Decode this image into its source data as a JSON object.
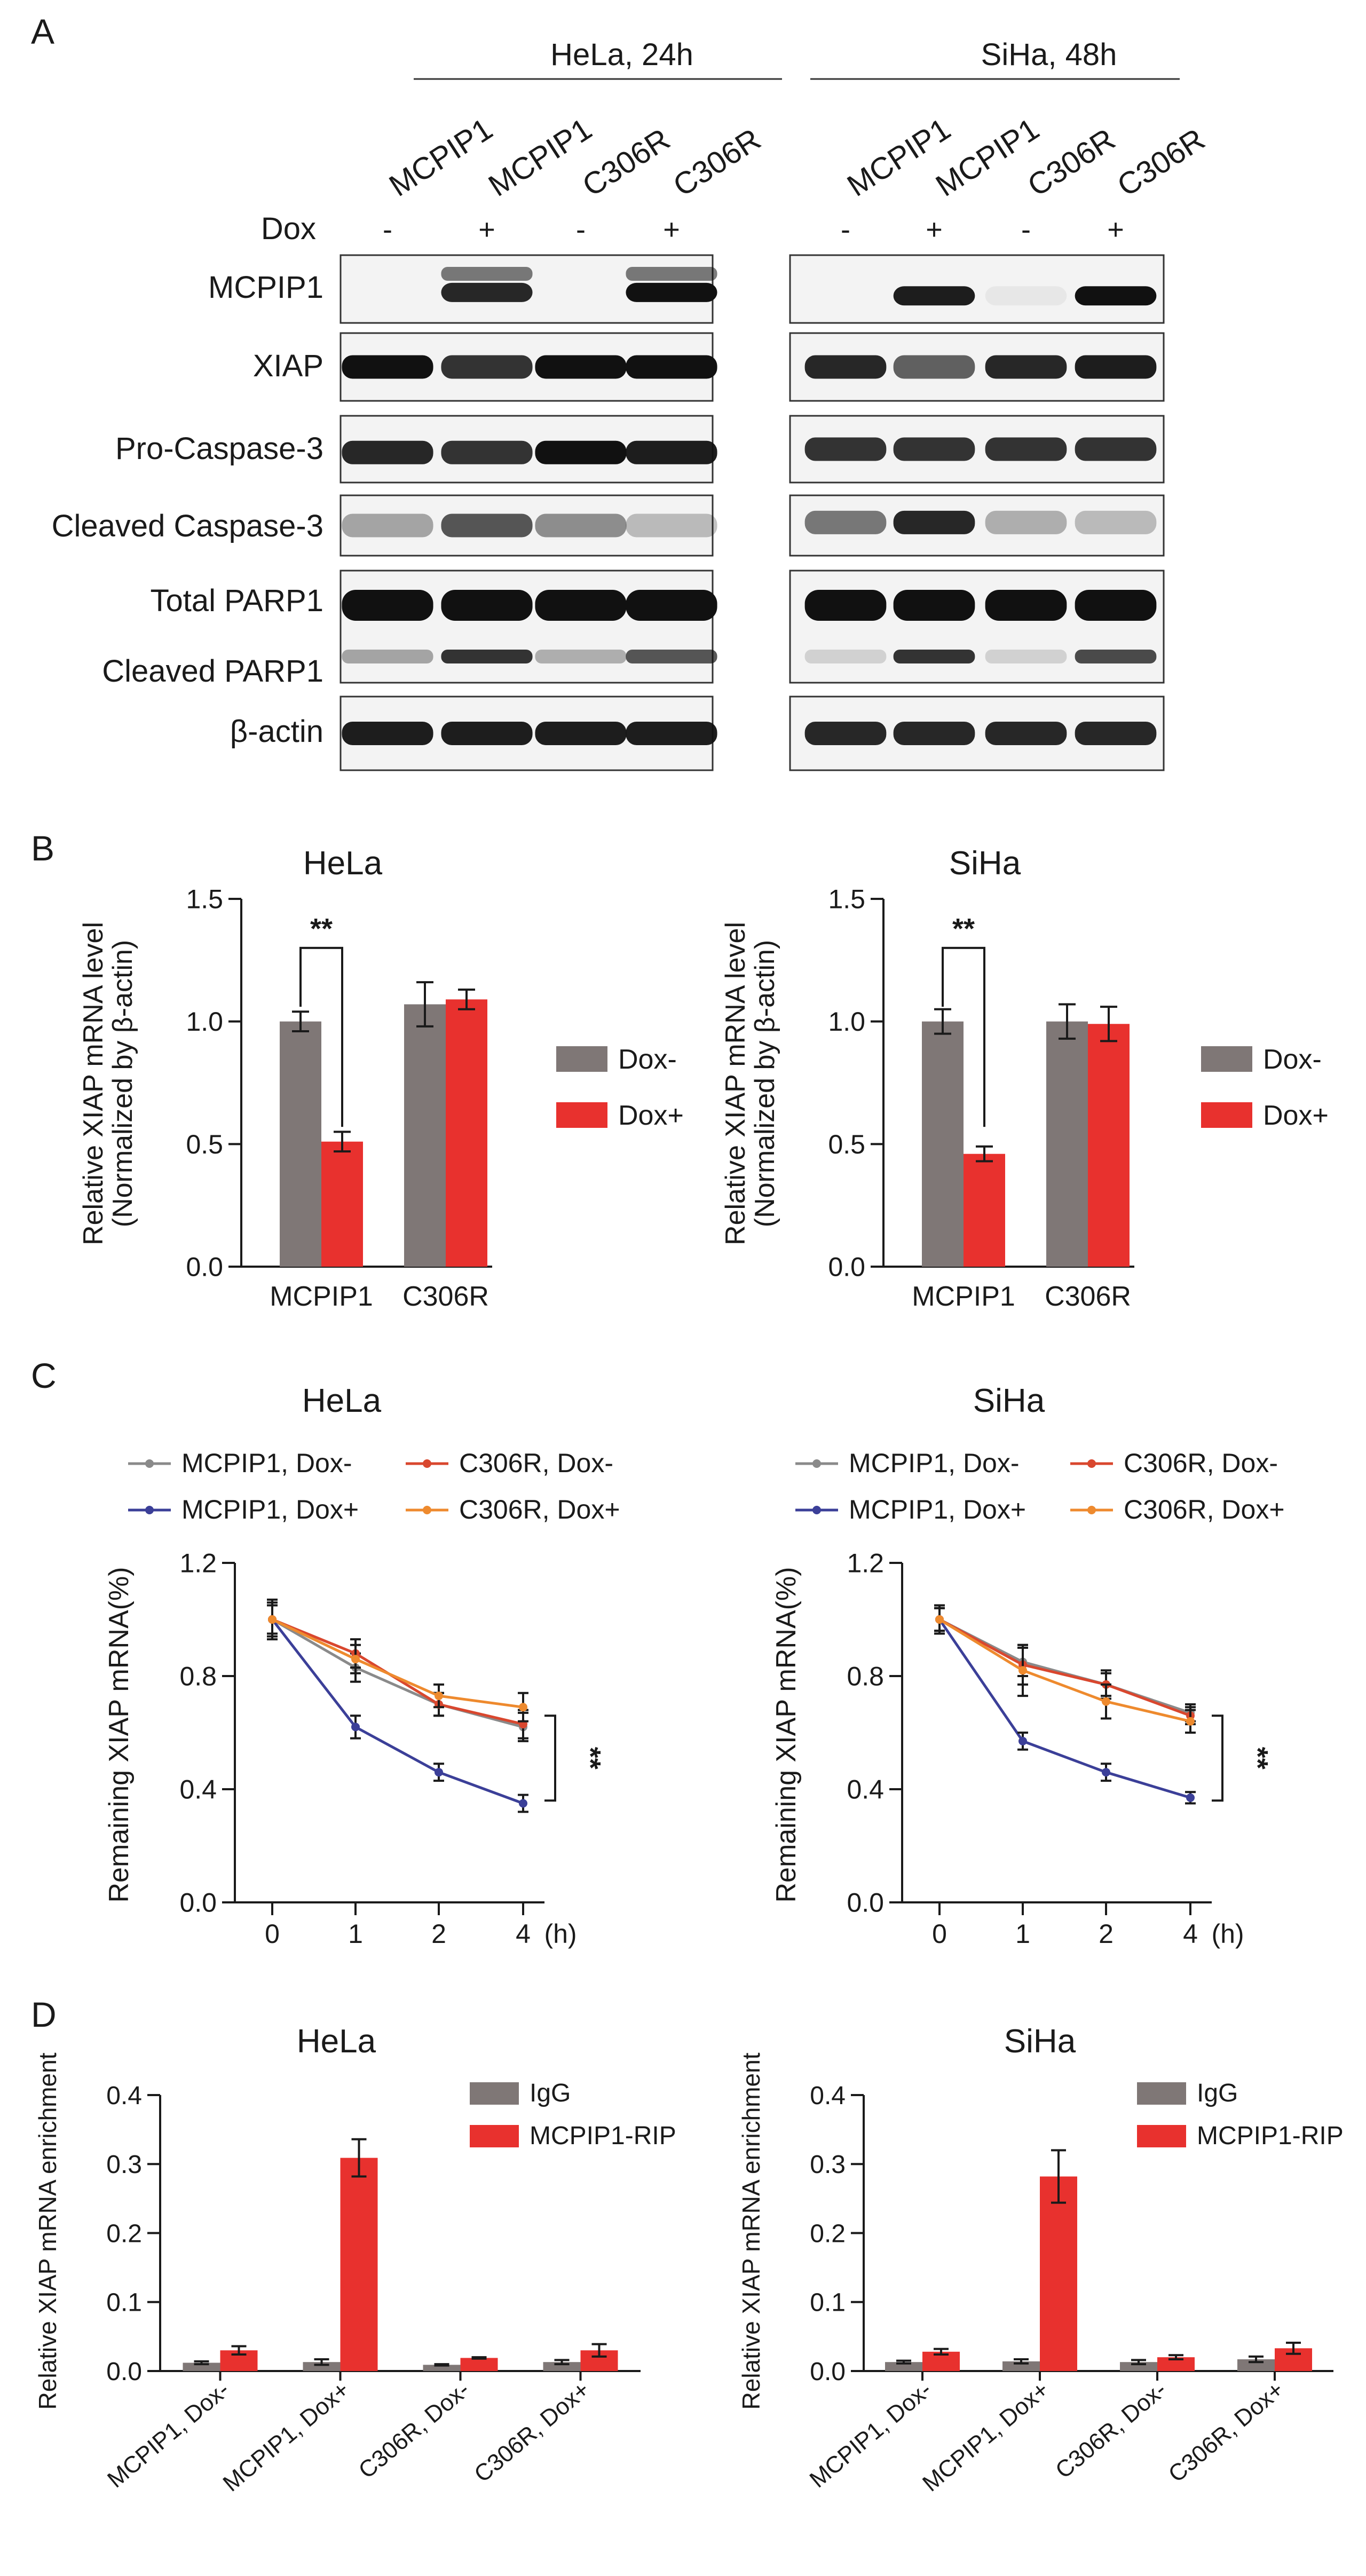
{
  "colors": {
    "grey": "#7f7776",
    "red": "#e8312e",
    "blue": "#3b3f98",
    "orange": "#ee8a2e",
    "darkred": "#d9472e",
    "linegrey": "#8a8a8a"
  },
  "panelA": {
    "letter": "A",
    "groups": [
      "HeLa, 24h",
      "SiHa, 48h"
    ],
    "lanes": [
      "MCPIP1",
      "MCPIP1",
      "C306R",
      "C306R"
    ],
    "dox_label": "Dox",
    "dox": [
      "-",
      "+",
      "-",
      "+"
    ],
    "rows": [
      "MCPIP1",
      "XIAP",
      "Pro-Caspase-3",
      "Cleaved Caspase-3",
      "Total PARP1",
      "Cleaved PARP1",
      "β-actin"
    ]
  },
  "panelB": {
    "letter": "B"
  },
  "panelC": {
    "letter": "C"
  },
  "panelD": {
    "letter": "D"
  },
  "chart_data": [
    {
      "id": "B-HeLa",
      "type": "bar",
      "title": "HeLa",
      "ylabel": "Relative XIAP mRNA level",
      "ylabel2": "(Normalized by β-actin)",
      "categories": [
        "MCPIP1",
        "C306R"
      ],
      "ylim": [
        0,
        1.5
      ],
      "yticks": [
        "0.0",
        "0.5",
        "1.0",
        "1.5"
      ],
      "series": [
        {
          "name": "Dox-",
          "values": [
            1.0,
            1.07
          ],
          "errors": [
            0.04,
            0.09
          ]
        },
        {
          "name": "Dox+",
          "values": [
            0.51,
            1.09
          ],
          "errors": [
            0.04,
            0.04
          ]
        }
      ],
      "sig": "**"
    },
    {
      "id": "B-SiHa",
      "type": "bar",
      "title": "SiHa",
      "ylabel": "Relative XIAP mRNA level",
      "ylabel2": "(Normalized by β-actin)",
      "categories": [
        "MCPIP1",
        "C306R"
      ],
      "ylim": [
        0,
        1.5
      ],
      "yticks": [
        "0.0",
        "0.5",
        "1.0",
        "1.5"
      ],
      "series": [
        {
          "name": "Dox-",
          "values": [
            1.0,
            1.0
          ],
          "errors": [
            0.05,
            0.07
          ]
        },
        {
          "name": "Dox+",
          "values": [
            0.46,
            0.99
          ],
          "errors": [
            0.03,
            0.07
          ]
        }
      ],
      "sig": "**"
    },
    {
      "id": "C-HeLa",
      "type": "line",
      "title": "HeLa",
      "ylabel": "Remaining XIAP mRNA(%)",
      "x": [
        0,
        1,
        2,
        4
      ],
      "xticks": [
        "0",
        "1",
        "2",
        "4"
      ],
      "xunit": "(h)",
      "ylim": [
        0,
        1.2
      ],
      "yticks": [
        "0.0",
        "0.4",
        "0.8",
        "1.2"
      ],
      "series": [
        {
          "name": "MCPIP1, Dox-",
          "values": [
            1.0,
            0.83,
            0.7,
            0.62
          ],
          "errors": [
            0.05,
            0.05,
            0.04,
            0.05
          ]
        },
        {
          "name": "MCPIP1, Dox+",
          "values": [
            1.0,
            0.62,
            0.46,
            0.35
          ],
          "errors": [
            0.05,
            0.04,
            0.03,
            0.03
          ]
        },
        {
          "name": "C306R, Dox-",
          "values": [
            1.0,
            0.88,
            0.7,
            0.63
          ],
          "errors": [
            0.06,
            0.05,
            0.04,
            0.05
          ]
        },
        {
          "name": "C306R, Dox+",
          "values": [
            1.0,
            0.86,
            0.73,
            0.69
          ],
          "errors": [
            0.07,
            0.05,
            0.04,
            0.05
          ]
        }
      ],
      "sig": "**"
    },
    {
      "id": "C-SiHa",
      "type": "line",
      "title": "SiHa",
      "ylabel": "Remaining XIAP mRNA(%)",
      "x": [
        0,
        1,
        2,
        4
      ],
      "xticks": [
        "0",
        "1",
        "2",
        "4"
      ],
      "xunit": "(h)",
      "ylim": [
        0,
        1.2
      ],
      "yticks": [
        "0.0",
        "0.4",
        "0.8",
        "1.2"
      ],
      "series": [
        {
          "name": "MCPIP1, Dox-",
          "values": [
            1.0,
            0.85,
            0.77,
            0.67
          ],
          "errors": [
            0.04,
            0.05,
            0.04,
            0.03
          ]
        },
        {
          "name": "MCPIP1, Dox+",
          "values": [
            1.0,
            0.57,
            0.46,
            0.37
          ],
          "errors": [
            0.04,
            0.03,
            0.03,
            0.02
          ]
        },
        {
          "name": "C306R, Dox-",
          "values": [
            1.0,
            0.84,
            0.77,
            0.66
          ],
          "errors": [
            0.04,
            0.07,
            0.05,
            0.03
          ]
        },
        {
          "name": "C306R, Dox+",
          "values": [
            1.0,
            0.82,
            0.71,
            0.64
          ],
          "errors": [
            0.05,
            0.09,
            0.06,
            0.04
          ]
        }
      ],
      "sig": "**"
    },
    {
      "id": "D-HeLa",
      "type": "bar",
      "title": "HeLa",
      "ylabel": "Relative XIAP mRNA enrichment",
      "categories": [
        "MCPIP1, Dox-",
        "MCPIP1, Dox+",
        "C306R, Dox-",
        "C306R, Dox+"
      ],
      "ylim": [
        0,
        0.4
      ],
      "yticks": [
        "0.0",
        "0.1",
        "0.2",
        "0.3",
        "0.4"
      ],
      "series": [
        {
          "name": "IgG",
          "values": [
            0.012,
            0.013,
            0.009,
            0.013
          ],
          "errors": [
            0.002,
            0.004,
            0.001,
            0.003
          ]
        },
        {
          "name": "MCPIP1-RIP",
          "values": [
            0.03,
            0.309,
            0.019,
            0.03
          ],
          "errors": [
            0.006,
            0.027,
            0.001,
            0.009
          ]
        }
      ]
    },
    {
      "id": "D-SiHa",
      "type": "bar",
      "title": "SiHa",
      "ylabel": "Relative XIAP mRNA enrichment",
      "categories": [
        "MCPIP1, Dox-",
        "MCPIP1, Dox+",
        "C306R, Dox-",
        "C306R, Dox+"
      ],
      "ylim": [
        0,
        0.4
      ],
      "yticks": [
        "0.0",
        "0.1",
        "0.2",
        "0.3",
        "0.4"
      ],
      "series": [
        {
          "name": "IgG",
          "values": [
            0.013,
            0.014,
            0.013,
            0.017
          ],
          "errors": [
            0.002,
            0.003,
            0.003,
            0.004
          ]
        },
        {
          "name": "MCPIP1-RIP",
          "values": [
            0.028,
            0.282,
            0.02,
            0.033
          ],
          "errors": [
            0.004,
            0.038,
            0.003,
            0.008
          ]
        }
      ]
    }
  ]
}
